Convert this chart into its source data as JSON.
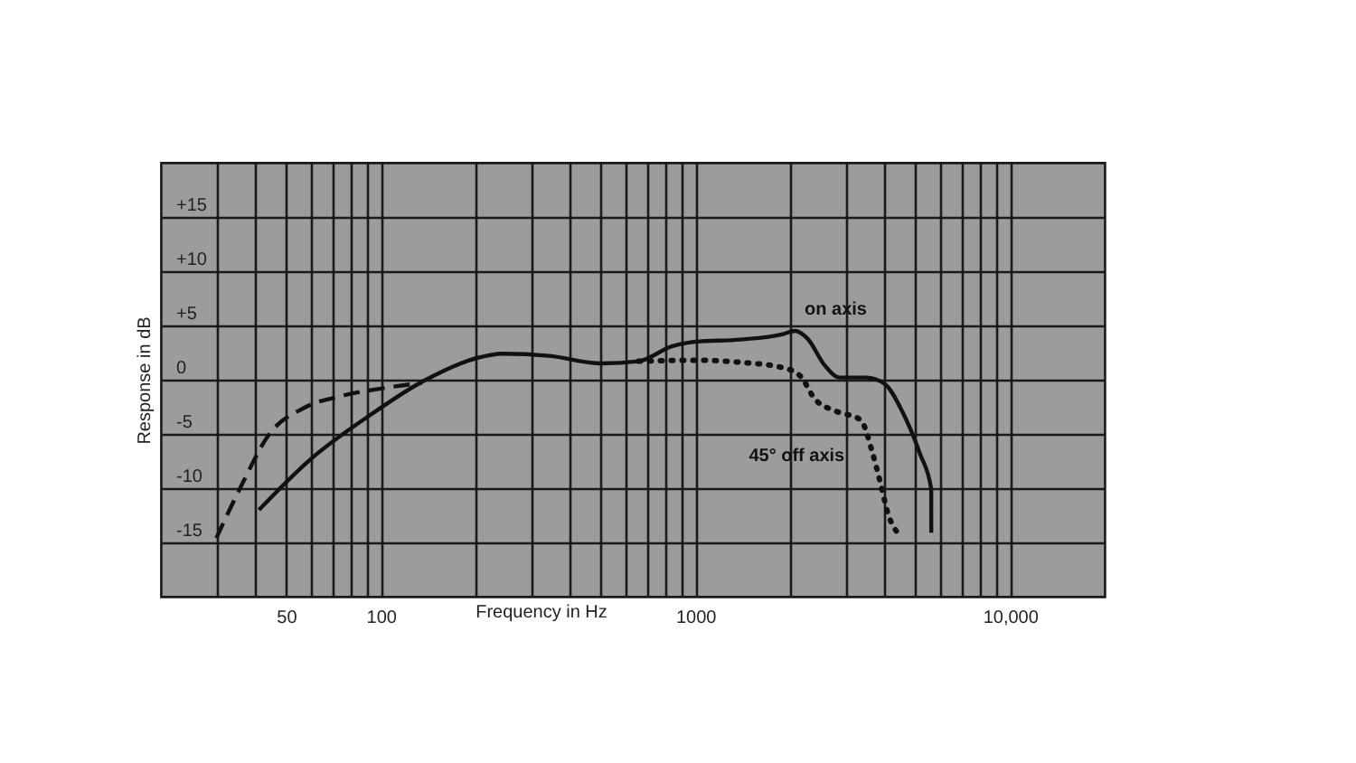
{
  "chart_data": {
    "type": "line",
    "xlabel": "Frequency in Hz",
    "ylabel": "Response in dB",
    "log": "x",
    "grid": true,
    "marker": "none",
    "xlim": [
      20,
      20000
    ],
    "xticks": [
      {
        "value": 30,
        "label": null
      },
      {
        "value": 40,
        "label": null
      },
      50,
      {
        "value": 60,
        "label": null
      },
      {
        "value": 70,
        "label": null
      },
      {
        "value": 80,
        "label": null
      },
      {
        "value": 90,
        "label": null
      },
      100,
      {
        "value": 200,
        "label": null
      },
      {
        "value": 300,
        "label": null
      },
      {
        "value": 400,
        "label": null
      },
      {
        "value": 500,
        "label": null
      },
      {
        "value": 600,
        "label": null
      },
      {
        "value": 700,
        "label": null
      },
      {
        "value": 800,
        "label": null
      },
      {
        "value": 900,
        "label": null
      },
      1000,
      {
        "value": 2000,
        "label": null
      },
      {
        "value": 3000,
        "label": null
      },
      {
        "value": 4000,
        "label": null
      },
      {
        "value": 5000,
        "label": null
      },
      {
        "value": 6000,
        "label": null
      },
      {
        "value": 7000,
        "label": null
      },
      {
        "value": 8000,
        "label": null
      },
      {
        "value": 9000,
        "label": null
      },
      {
        "value": 10000,
        "label": "10,000"
      }
    ],
    "ylim": [
      -20,
      20
    ],
    "yticks": [
      {
        "value": 15,
        "label": "+15"
      },
      {
        "value": 10,
        "label": "+10"
      },
      {
        "value": 5,
        "label": "+5"
      },
      0,
      -5,
      -10,
      -15
    ],
    "series": [
      {
        "name": "on axis",
        "color": "#111111",
        "line_style": "solid",
        "x": [
          41,
          60,
          91,
          137,
          202,
          243,
          343,
          502,
          660,
          845,
          1000,
          1390,
          1900,
          2070,
          2270,
          2580,
          2870,
          3500,
          4000,
          4540,
          5170,
          5620,
          5620
        ],
        "values": [
          -12,
          -7.3,
          -3.4,
          -0.1,
          2,
          2.4,
          2.2,
          1.5,
          1.7,
          3.1,
          3.5,
          3.7,
          4.2,
          4.5,
          3.8,
          1.3,
          0.2,
          0.2,
          -0.4,
          -2.9,
          -6.8,
          -10.1,
          -14.1
        ]
      },
      {
        "color": "#111111",
        "line_style": "dashed",
        "x": [
          30,
          36,
          44,
          57,
          75,
          101,
          135
        ],
        "values": [
          -14.6,
          -9.8,
          -5.1,
          -2.6,
          -1.5,
          -0.8,
          -0.3
        ]
      },
      {
        "name": "45° off axis",
        "color": "#111111",
        "line_style": "dotted",
        "x": [
          660,
          1000,
          1390,
          1900,
          2160,
          2400,
          2800,
          3350,
          3660,
          3880,
          4090,
          4450
        ],
        "values": [
          1.7,
          1.8,
          1.6,
          1.1,
          0.3,
          -1.8,
          -2.9,
          -3.7,
          -6.8,
          -9.6,
          -12.3,
          -14.3
        ]
      }
    ]
  }
}
